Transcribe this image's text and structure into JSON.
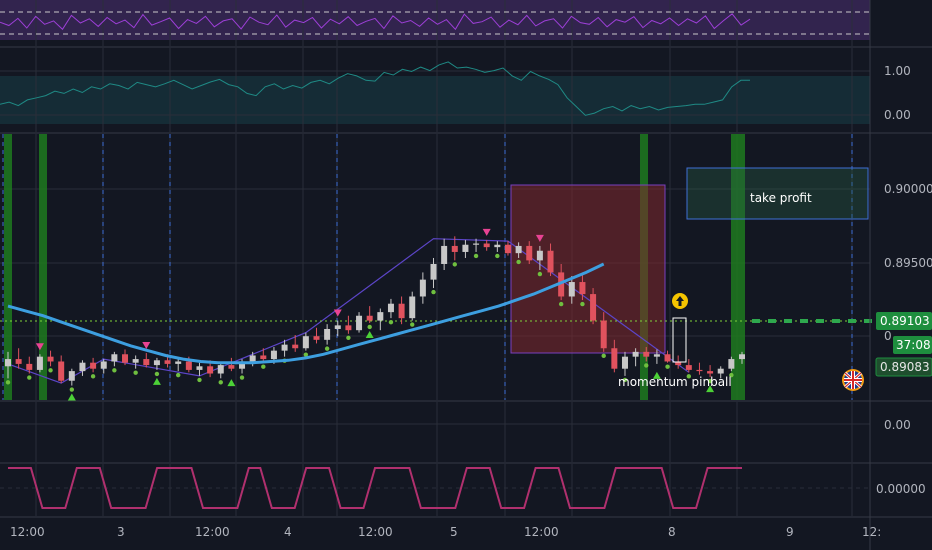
{
  "colors": {
    "background": "#131722",
    "separator": "#363a45",
    "grid": "#2a2e39",
    "up_candle": "#c8c8c8",
    "down_candle": "#e0525e",
    "ma_line": "#3d9fe0",
    "zigzag": "#5c45c8",
    "signal_green": "#1e7a1e",
    "rsi_line": "#9c3fd6",
    "osc_line": "#1f8a85",
    "step_line": "#b0306e",
    "current_price": "#1e8e3e",
    "crosshair": "#3f6fd6",
    "dashed_level": "#c9c9c9"
  },
  "icons": {
    "flag": "uk-flag-icon",
    "alert": "up-arrow-circle-icon"
  },
  "chart_data": [
    {
      "panel": "rsi",
      "type": "line",
      "title": "",
      "y_levels_dashed": [
        70,
        30
      ],
      "ylim": [
        0,
        100
      ],
      "values": [
        52,
        44,
        61,
        38,
        66,
        47,
        55,
        35,
        68,
        50,
        60,
        42,
        63,
        48,
        57,
        39,
        70,
        45,
        53,
        62,
        37,
        58,
        49,
        66,
        41,
        55,
        60,
        36,
        64,
        52,
        46,
        69,
        40,
        57,
        51,
        63,
        38,
        59,
        48,
        65,
        44,
        54,
        61,
        37,
        67,
        50,
        56,
        42,
        62,
        47,
        58,
        35,
        71,
        49,
        53,
        64,
        40,
        57,
        46,
        68,
        43,
        55,
        60,
        38,
        66,
        51,
        47,
        63,
        41,
        58,
        52,
        65,
        39,
        56,
        48,
        62,
        44,
        60,
        50,
        67,
        37,
        55,
        72,
        45,
        59
      ]
    },
    {
      "panel": "oscillator",
      "type": "line",
      "ytick_labels": [
        "1.00",
        "0.00"
      ],
      "ylim": [
        -0.3,
        1.3
      ],
      "values": [
        0.15,
        0.2,
        0.12,
        0.25,
        0.3,
        0.35,
        0.45,
        0.4,
        0.5,
        0.42,
        0.55,
        0.5,
        0.62,
        0.58,
        0.5,
        0.65,
        0.6,
        0.55,
        0.62,
        0.7,
        0.6,
        0.5,
        0.58,
        0.66,
        0.72,
        0.6,
        0.55,
        0.4,
        0.35,
        0.55,
        0.62,
        0.5,
        0.58,
        0.52,
        0.65,
        0.7,
        0.62,
        0.75,
        0.85,
        0.8,
        0.7,
        0.68,
        0.88,
        0.82,
        0.95,
        0.9,
        1.0,
        0.92,
        1.05,
        1.12,
        0.98,
        1.0,
        0.95,
        0.88,
        0.92,
        0.98,
        0.8,
        0.7,
        0.9,
        0.8,
        0.72,
        0.6,
        0.3,
        0.1,
        -0.1,
        -0.05,
        0.05,
        0.1,
        0.0,
        0.12,
        0.05,
        0.1,
        0.02,
        0.08,
        0.1,
        0.12,
        0.15,
        0.15,
        0.2,
        0.25,
        0.55,
        0.7,
        0.7
      ]
    },
    {
      "panel": "price",
      "type": "candlestick",
      "ytick_labels": [
        "0.90000",
        "0.89500"
      ],
      "ylim": [
        0.8872,
        0.9093
      ],
      "current_price_label": "0.89103",
      "countdown_label": "37:08",
      "low_label": "0.89083",
      "partial_tick": "0",
      "ohlc": [
        [
          0.89,
          0.8912,
          0.889,
          0.8906
        ],
        [
          0.8906,
          0.8915,
          0.8898,
          0.8902
        ],
        [
          0.8902,
          0.8908,
          0.8894,
          0.8897
        ],
        [
          0.8897,
          0.891,
          0.8895,
          0.8908
        ],
        [
          0.8908,
          0.8913,
          0.89,
          0.8904
        ],
        [
          0.8904,
          0.8909,
          0.8886,
          0.8888
        ],
        [
          0.8888,
          0.8898,
          0.8884,
          0.8896
        ],
        [
          0.8896,
          0.8905,
          0.8892,
          0.8903
        ],
        [
          0.8903,
          0.8907,
          0.8895,
          0.8898
        ],
        [
          0.8898,
          0.8906,
          0.8894,
          0.8904
        ],
        [
          0.8904,
          0.8912,
          0.89,
          0.891
        ],
        [
          0.891,
          0.8914,
          0.8901,
          0.8903
        ],
        [
          0.8903,
          0.8909,
          0.8898,
          0.8906
        ],
        [
          0.8906,
          0.8911,
          0.8899,
          0.8901
        ],
        [
          0.8901,
          0.8907,
          0.8897,
          0.8905
        ],
        [
          0.8905,
          0.891,
          0.8899,
          0.8902
        ],
        [
          0.8902,
          0.8906,
          0.8896,
          0.8904
        ],
        [
          0.8904,
          0.8908,
          0.8895,
          0.8897
        ],
        [
          0.8897,
          0.8903,
          0.8892,
          0.89
        ],
        [
          0.89,
          0.8905,
          0.8891,
          0.8894
        ],
        [
          0.8894,
          0.8903,
          0.889,
          0.8901
        ],
        [
          0.8901,
          0.8907,
          0.8896,
          0.8898
        ],
        [
          0.8898,
          0.8906,
          0.8894,
          0.8904
        ],
        [
          0.8904,
          0.8912,
          0.89,
          0.8909
        ],
        [
          0.8909,
          0.8915,
          0.8903,
          0.8906
        ],
        [
          0.8906,
          0.8916,
          0.8902,
          0.8913
        ],
        [
          0.8913,
          0.8922,
          0.8908,
          0.8918
        ],
        [
          0.8918,
          0.8926,
          0.8912,
          0.8915
        ],
        [
          0.8915,
          0.8928,
          0.8913,
          0.8925
        ],
        [
          0.8925,
          0.8932,
          0.8919,
          0.8922
        ],
        [
          0.8922,
          0.8935,
          0.8918,
          0.8931
        ],
        [
          0.8931,
          0.8938,
          0.8925,
          0.8934
        ],
        [
          0.8934,
          0.8942,
          0.8927,
          0.893
        ],
        [
          0.893,
          0.8945,
          0.8928,
          0.8942
        ],
        [
          0.8942,
          0.895,
          0.8936,
          0.8938
        ],
        [
          0.8938,
          0.8948,
          0.893,
          0.8945
        ],
        [
          0.8945,
          0.8956,
          0.894,
          0.8952
        ],
        [
          0.8952,
          0.8958,
          0.8935,
          0.894
        ],
        [
          0.894,
          0.8962,
          0.8938,
          0.8958
        ],
        [
          0.8958,
          0.8978,
          0.8952,
          0.8972
        ],
        [
          0.8972,
          0.899,
          0.8965,
          0.8985
        ],
        [
          0.8985,
          0.9006,
          0.898,
          0.9
        ],
        [
          0.9,
          0.9008,
          0.8988,
          0.8995
        ],
        [
          0.8995,
          0.9005,
          0.899,
          0.9001
        ],
        [
          0.9001,
          0.9006,
          0.8995,
          0.9002
        ],
        [
          0.9002,
          0.9005,
          0.8996,
          0.8999
        ],
        [
          0.8999,
          0.9004,
          0.8995,
          0.9001
        ],
        [
          0.9001,
          0.9004,
          0.8992,
          0.8994
        ],
        [
          0.8994,
          0.9003,
          0.899,
          0.9
        ],
        [
          0.9,
          0.9004,
          0.8985,
          0.8988
        ],
        [
          0.8988,
          0.9,
          0.898,
          0.8996
        ],
        [
          0.8996,
          0.9002,
          0.8975,
          0.8978
        ],
        [
          0.8978,
          0.8985,
          0.8955,
          0.8958
        ],
        [
          0.8958,
          0.8975,
          0.8952,
          0.897
        ],
        [
          0.897,
          0.8978,
          0.8955,
          0.896
        ],
        [
          0.896,
          0.8965,
          0.8935,
          0.8938
        ],
        [
          0.8938,
          0.8945,
          0.8912,
          0.8915
        ],
        [
          0.8915,
          0.8922,
          0.8895,
          0.8898
        ],
        [
          0.8898,
          0.8912,
          0.8892,
          0.8908
        ],
        [
          0.8908,
          0.8915,
          0.89,
          0.8912
        ],
        [
          0.8912,
          0.8916,
          0.8904,
          0.8908
        ],
        [
          0.8908,
          0.8914,
          0.8902,
          0.891
        ],
        [
          0.891,
          0.8913,
          0.8903,
          0.8904
        ],
        [
          0.8904,
          0.8909,
          0.8898,
          0.8901
        ],
        [
          0.8901,
          0.8906,
          0.8895,
          0.8897
        ],
        [
          0.8897,
          0.8903,
          0.8893,
          0.8896
        ],
        [
          0.8896,
          0.8901,
          0.8891,
          0.8894
        ],
        [
          0.8894,
          0.89,
          0.889,
          0.8898
        ],
        [
          0.8898,
          0.8908,
          0.8896,
          0.8906
        ],
        [
          0.8906,
          0.8912,
          0.8902,
          0.891
        ]
      ],
      "ma_values": [
        0.895,
        0.8946,
        0.8942,
        0.8937,
        0.8932,
        0.8927,
        0.8922,
        0.8917,
        0.8913,
        0.8909,
        0.8906,
        0.8904,
        0.8903,
        0.8903,
        0.8903,
        0.8904,
        0.8905,
        0.8907,
        0.891,
        0.8914,
        0.8918,
        0.8922,
        0.8926,
        0.893,
        0.8934,
        0.8938,
        0.8942,
        0.8946,
        0.895,
        0.8955,
        0.896,
        0.8966,
        0.8972,
        0.8978,
        0.8985
      ],
      "ma_end_index": 56,
      "zigzag": [
        [
          0,
          0.8902
        ],
        [
          5,
          0.8886
        ],
        [
          9,
          0.8906
        ],
        [
          18,
          0.8892
        ],
        [
          28,
          0.8928
        ],
        [
          40,
          0.9006
        ],
        [
          47,
          0.9004
        ],
        [
          64,
          0.8895
        ]
      ],
      "signal_bands": [
        1,
        3,
        57,
        64
      ],
      "buy_markers": [
        6,
        14,
        21,
        34,
        61,
        66
      ],
      "sell_markers": [
        3,
        13,
        31,
        45,
        50
      ],
      "annotations": {
        "take_profit": "take profit",
        "pinball": "momentum pinball"
      }
    },
    {
      "panel": "lower_oscillator",
      "type": "line",
      "ytick_labels": [
        "0.00"
      ],
      "values": []
    },
    {
      "panel": "step",
      "type": "line",
      "ytick_labels": [
        "0.00000"
      ],
      "values": [
        1,
        1,
        1,
        0,
        0,
        0,
        1,
        1,
        1,
        0,
        0,
        0,
        0,
        1,
        1,
        1,
        1,
        0,
        0,
        0,
        0,
        1,
        1,
        0,
        0,
        0,
        1,
        1,
        1,
        0,
        0,
        0,
        1,
        1,
        1,
        1,
        0,
        0,
        0,
        0,
        1,
        1,
        1,
        0,
        0,
        0,
        1,
        1,
        1,
        0,
        0,
        0,
        0,
        1,
        1,
        1,
        1,
        1,
        0,
        0,
        0,
        1,
        1,
        1,
        1
      ]
    },
    {
      "panel": "time_axis",
      "type": "axis",
      "xtick_labels": [
        "12:00",
        "3",
        "12:00",
        "4",
        "12:00",
        "5",
        "12:00",
        "8",
        "9",
        "12:"
      ]
    }
  ]
}
